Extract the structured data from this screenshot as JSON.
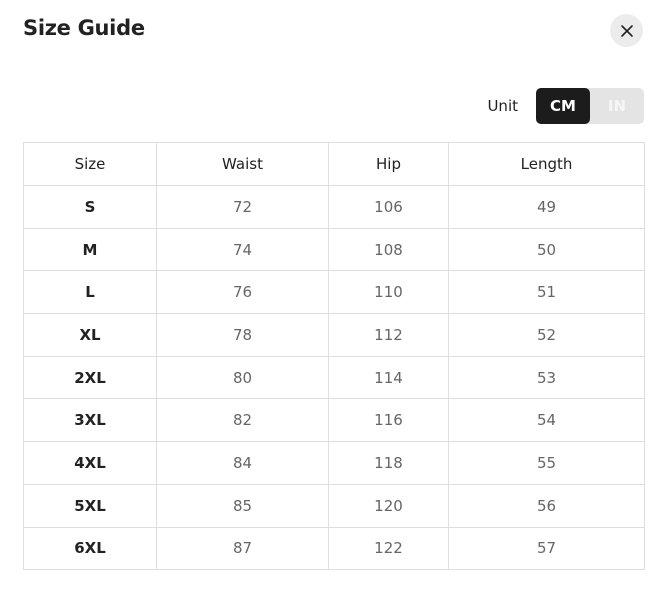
{
  "title": "Size Guide",
  "close_icon": "close-icon",
  "unit": {
    "label": "Unit",
    "options": [
      "CM",
      "IN"
    ],
    "selected": "CM"
  },
  "table": {
    "headers": [
      "Size",
      "Waist",
      "Hip",
      "Length"
    ],
    "rows": [
      [
        "S",
        "72",
        "106",
        "49"
      ],
      [
        "M",
        "74",
        "108",
        "50"
      ],
      [
        "L",
        "76",
        "110",
        "51"
      ],
      [
        "XL",
        "78",
        "112",
        "52"
      ],
      [
        "2XL",
        "80",
        "114",
        "53"
      ],
      [
        "3XL",
        "82",
        "116",
        "54"
      ],
      [
        "4XL",
        "84",
        "118",
        "55"
      ],
      [
        "5XL",
        "85",
        "120",
        "56"
      ],
      [
        "6XL",
        "87",
        "122",
        "57"
      ]
    ]
  }
}
